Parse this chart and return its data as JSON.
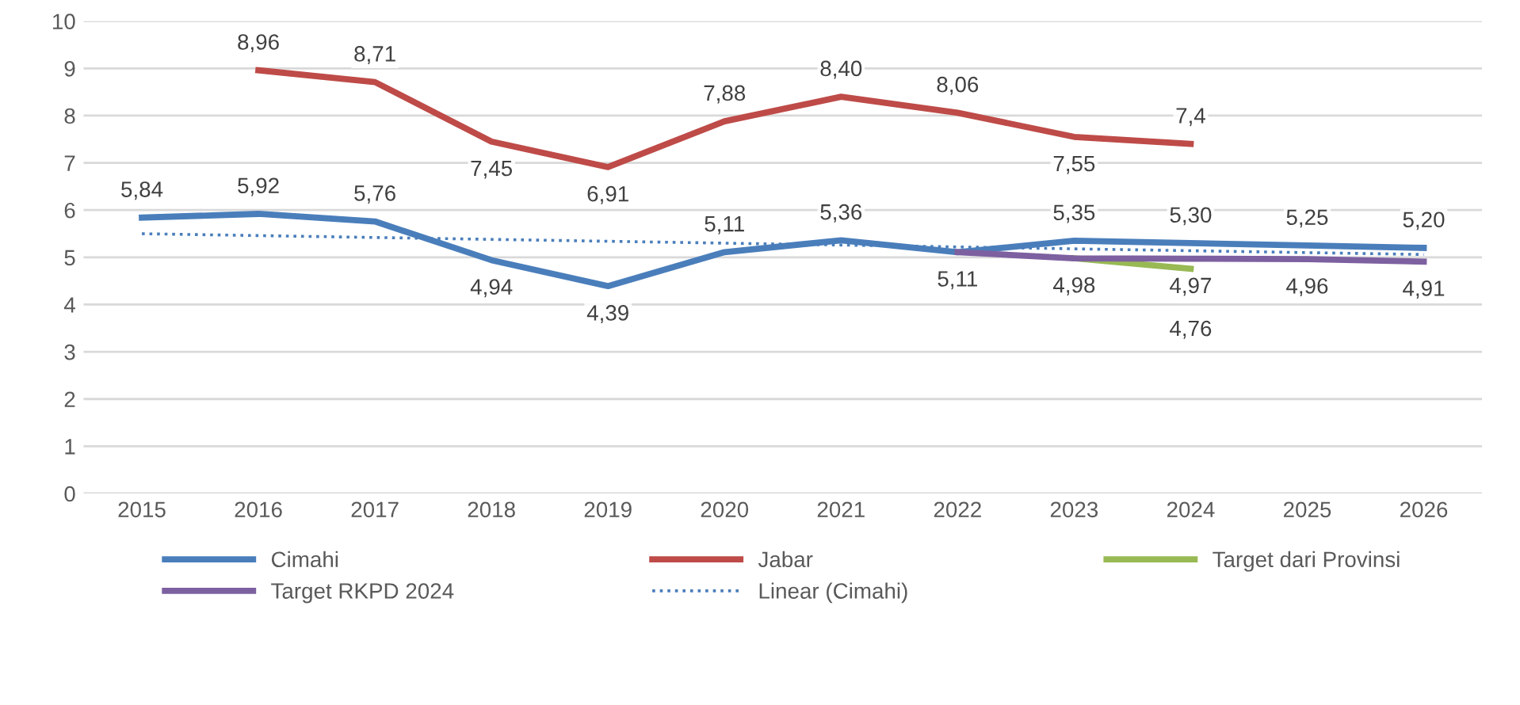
{
  "chart_data": {
    "type": "line",
    "categories": [
      "2015",
      "2016",
      "2017",
      "2018",
      "2019",
      "2020",
      "2021",
      "2022",
      "2023",
      "2024",
      "2025",
      "2026"
    ],
    "series": [
      {
        "name": "Cimahi",
        "color": "#4a7ebb",
        "values": [
          5.84,
          5.92,
          5.76,
          4.94,
          4.39,
          5.11,
          5.36,
          5.11,
          5.35,
          5.3,
          5.25,
          5.2
        ],
        "value_labels": [
          "5,84",
          "5,92",
          "5,76",
          "4,94",
          "4,39",
          "5,11",
          "5,36",
          "5,11",
          "5,35",
          "5,30",
          "5,25",
          "5,20"
        ]
      },
      {
        "name": "Jabar",
        "color": "#be4b48",
        "values": [
          null,
          8.96,
          8.71,
          7.45,
          6.91,
          7.88,
          8.4,
          8.06,
          7.55,
          7.4,
          null,
          null
        ],
        "value_labels": [
          null,
          "8,96",
          "8,71",
          "7,45",
          "6,91",
          "7,88",
          "8,40",
          "8,06",
          "7,55",
          "7,4",
          null,
          null
        ]
      },
      {
        "name": "Target dari Provinsi",
        "color": "#98b954",
        "values": [
          null,
          null,
          null,
          null,
          null,
          null,
          null,
          null,
          4.98,
          4.76,
          null,
          null
        ],
        "value_labels": [
          null,
          null,
          null,
          null,
          null,
          null,
          null,
          null,
          null,
          "4,76",
          null,
          null
        ]
      },
      {
        "name": "Target RKPD 2024",
        "color": "#7d60a0",
        "values": [
          null,
          null,
          null,
          null,
          null,
          null,
          null,
          5.11,
          4.98,
          4.97,
          4.96,
          4.91
        ],
        "value_labels": [
          null,
          null,
          null,
          null,
          null,
          null,
          null,
          null,
          "4,98",
          "4,97",
          "4,96",
          "4,91"
        ]
      },
      {
        "name": "Linear (Cimahi)",
        "color": "#4a7ebb",
        "line_style": "dotted",
        "values": [
          5.5,
          5.46,
          5.42,
          5.38,
          5.34,
          5.3,
          5.26,
          5.22,
          5.18,
          5.14,
          5.1,
          5.06
        ]
      }
    ],
    "ylim": [
      0,
      10
    ],
    "yticks": [
      0,
      1,
      2,
      3,
      4,
      5,
      6,
      7,
      8,
      9,
      10
    ],
    "grid": "y",
    "legend": "bottom",
    "marker": "none"
  }
}
